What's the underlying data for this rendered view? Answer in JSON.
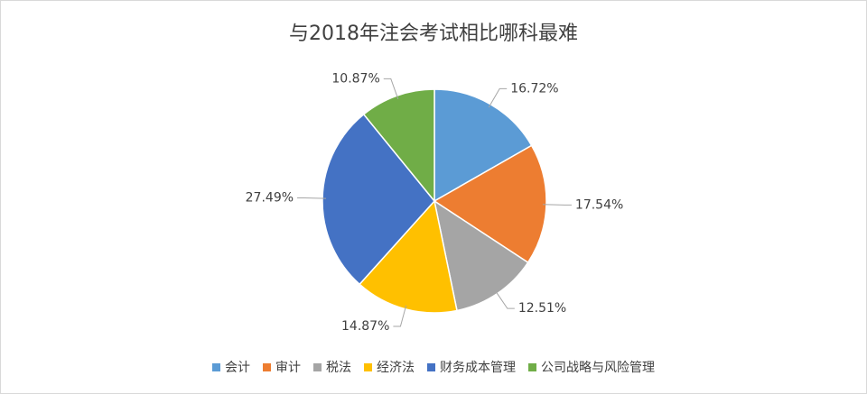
{
  "chart_data": {
    "type": "pie",
    "title": "与2018年注会考试相比哪科最难",
    "categories": [
      "会计",
      "审计",
      "税法",
      "经济法",
      "财务成本管理",
      "公司战略与风险管理"
    ],
    "values": [
      16.72,
      17.54,
      12.51,
      14.87,
      27.49,
      10.87
    ],
    "value_labels": [
      "16.72%",
      "17.54%",
      "12.51%",
      "14.87%",
      "27.49%",
      "10.87%"
    ],
    "colors": [
      "#5b9bd5",
      "#ed7d31",
      "#a5a5a5",
      "#ffc000",
      "#4472c4",
      "#70ad47"
    ],
    "legend": "bottom"
  }
}
